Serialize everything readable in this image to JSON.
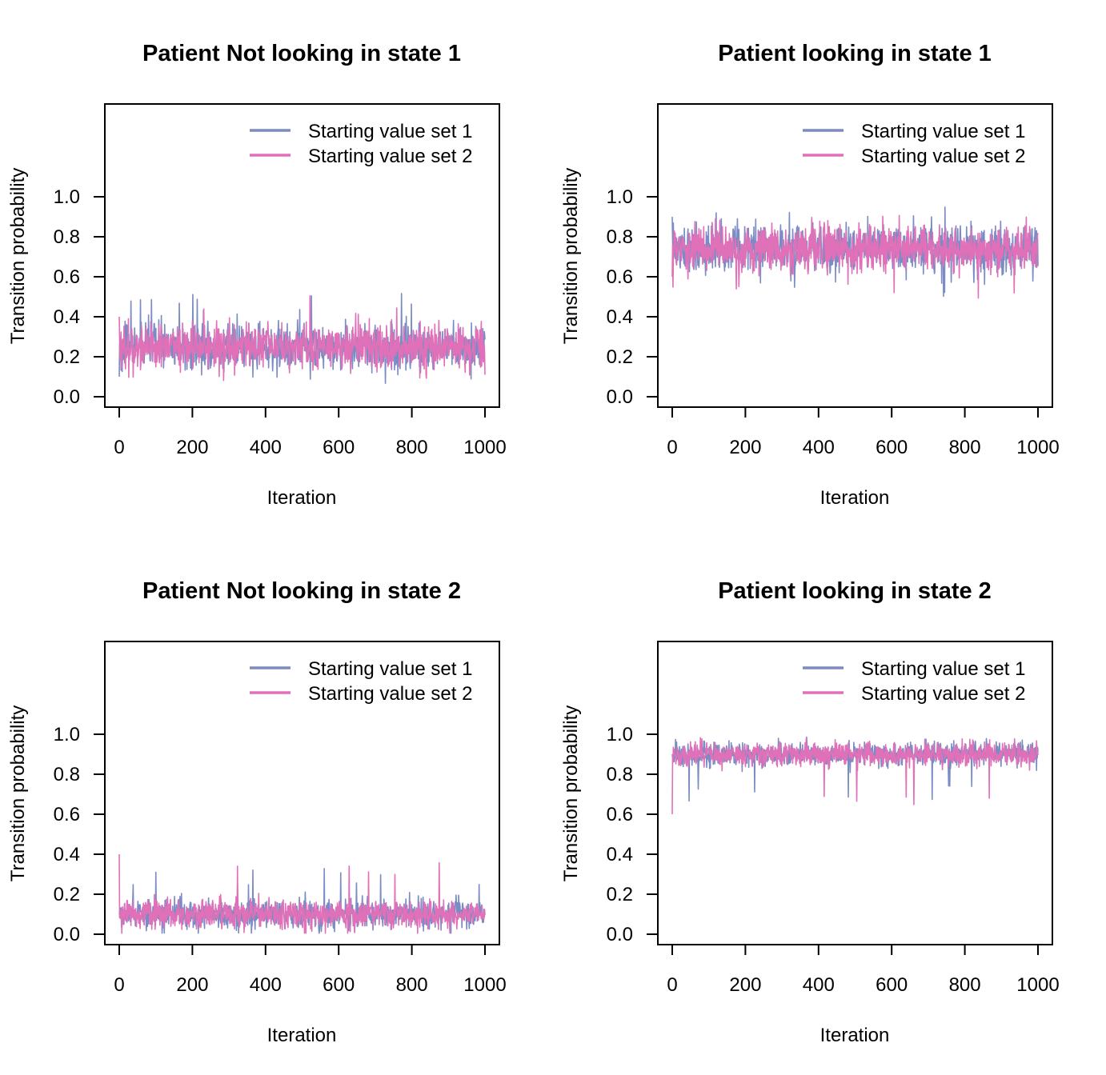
{
  "colors": {
    "series1": "#7b8bc4",
    "series2": "#e070b8",
    "axis": "#000000"
  },
  "chart_data": [
    {
      "type": "line",
      "title": "Patient Not looking in state 1",
      "xlabel": "Iteration",
      "ylabel": "Transition probability",
      "xlim": [
        0,
        1000
      ],
      "ylim": [
        0,
        1.0
      ],
      "xticks": [
        0,
        200,
        400,
        600,
        800,
        1000
      ],
      "xtick_labels": [
        "0",
        "200",
        "400",
        "600",
        "800",
        "1000"
      ],
      "yticks": [
        0.0,
        0.2,
        0.4,
        0.6,
        0.8,
        1.0
      ],
      "ytick_labels": [
        "0.0",
        "0.2",
        "0.4",
        "0.6",
        "0.8",
        "1.0"
      ],
      "legend_position": "top-right",
      "series": [
        {
          "name": "Starting value set 1",
          "summary": {
            "n": 1000,
            "start": 0.1,
            "mean": 0.25,
            "sd": 0.055,
            "max": 0.53
          }
        },
        {
          "name": "Starting value set 2",
          "summary": {
            "n": 1000,
            "start": 0.4,
            "mean": 0.25,
            "sd": 0.055,
            "max": 0.51
          }
        }
      ]
    },
    {
      "type": "line",
      "title": "Patient looking in state 1",
      "xlabel": "Iteration",
      "ylabel": "Transition probability",
      "xlim": [
        0,
        1000
      ],
      "ylim": [
        0,
        1.0
      ],
      "xticks": [
        0,
        200,
        400,
        600,
        800,
        1000
      ],
      "xtick_labels": [
        "0",
        "200",
        "400",
        "600",
        "800",
        "1000"
      ],
      "yticks": [
        0.0,
        0.2,
        0.4,
        0.6,
        0.8,
        1.0
      ],
      "ytick_labels": [
        "0.0",
        "0.2",
        "0.4",
        "0.6",
        "0.8",
        "1.0"
      ],
      "legend_position": "top-right",
      "series": [
        {
          "name": "Starting value set 1",
          "summary": {
            "n": 1000,
            "start": 0.9,
            "mean": 0.74,
            "sd": 0.055,
            "min": 0.47
          }
        },
        {
          "name": "Starting value set 2",
          "summary": {
            "n": 1000,
            "start": 0.6,
            "mean": 0.74,
            "sd": 0.055,
            "min": 0.49
          }
        }
      ]
    },
    {
      "type": "line",
      "title": "Patient Not looking in state 2",
      "xlabel": "Iteration",
      "ylabel": "Transition probability",
      "xlim": [
        0,
        1000
      ],
      "ylim": [
        0,
        1.0
      ],
      "xticks": [
        0,
        200,
        400,
        600,
        800,
        1000
      ],
      "xtick_labels": [
        "0",
        "200",
        "400",
        "600",
        "800",
        "1000"
      ],
      "yticks": [
        0.0,
        0.2,
        0.4,
        0.6,
        0.8,
        1.0
      ],
      "ytick_labels": [
        "0.0",
        "0.2",
        "0.4",
        "0.6",
        "0.8",
        "1.0"
      ],
      "legend_position": "top-right",
      "series": [
        {
          "name": "Starting value set 1",
          "summary": {
            "n": 1000,
            "start": 0.1,
            "mean": 0.1,
            "sd": 0.035,
            "max": 0.34
          }
        },
        {
          "name": "Starting value set 2",
          "summary": {
            "n": 1000,
            "start": 0.4,
            "mean": 0.1,
            "sd": 0.035,
            "max": 0.38
          }
        }
      ]
    },
    {
      "type": "line",
      "title": "Patient looking in state 2",
      "xlabel": "Iteration",
      "ylabel": "Transition probability",
      "xlim": [
        0,
        1000
      ],
      "ylim": [
        0,
        1.0
      ],
      "xticks": [
        0,
        200,
        400,
        600,
        800,
        1000
      ],
      "xtick_labels": [
        "0",
        "200",
        "400",
        "600",
        "800",
        "1000"
      ],
      "yticks": [
        0.0,
        0.2,
        0.4,
        0.6,
        0.8,
        1.0
      ],
      "ytick_labels": [
        "0.0",
        "0.2",
        "0.4",
        "0.6",
        "0.8",
        "1.0"
      ],
      "legend_position": "top-right",
      "series": [
        {
          "name": "Starting value set 1",
          "summary": {
            "n": 1000,
            "start": 0.9,
            "mean": 0.9,
            "sd": 0.03,
            "min": 0.65
          }
        },
        {
          "name": "Starting value set 2",
          "summary": {
            "n": 1000,
            "start": 0.6,
            "mean": 0.9,
            "sd": 0.03,
            "min": 0.63
          }
        }
      ]
    }
  ]
}
